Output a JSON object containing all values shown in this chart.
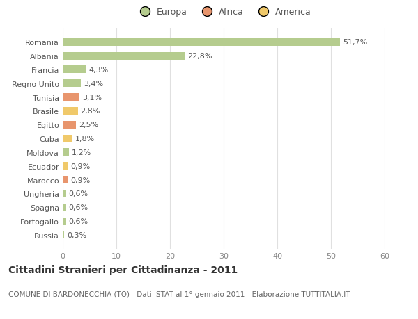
{
  "categories": [
    "Romania",
    "Albania",
    "Francia",
    "Regno Unito",
    "Tunisia",
    "Brasile",
    "Egitto",
    "Cuba",
    "Moldova",
    "Ecuador",
    "Marocco",
    "Ungheria",
    "Spagna",
    "Portogallo",
    "Russia"
  ],
  "values": [
    51.7,
    22.8,
    4.3,
    3.4,
    3.1,
    2.8,
    2.5,
    1.8,
    1.2,
    0.9,
    0.9,
    0.6,
    0.6,
    0.6,
    0.3
  ],
  "labels": [
    "51,7%",
    "22,8%",
    "4,3%",
    "3,4%",
    "3,1%",
    "2,8%",
    "2,5%",
    "1,8%",
    "1,2%",
    "0,9%",
    "0,9%",
    "0,6%",
    "0,6%",
    "0,6%",
    "0,3%"
  ],
  "continent": [
    "Europa",
    "Europa",
    "Europa",
    "Europa",
    "Africa",
    "America",
    "Africa",
    "America",
    "Europa",
    "America",
    "Africa",
    "Europa",
    "Europa",
    "Europa",
    "Europa"
  ],
  "colors": {
    "Europa": "#b5cc8e",
    "Africa": "#e8956d",
    "America": "#f0c96a"
  },
  "xlim": [
    0,
    60
  ],
  "xticks": [
    0,
    10,
    20,
    30,
    40,
    50,
    60
  ],
  "title": "Cittadini Stranieri per Cittadinanza - 2011",
  "subtitle": "COMUNE DI BARDONECCHIA (TO) - Dati ISTAT al 1° gennaio 2011 - Elaborazione TUTTITALIA.IT",
  "background_color": "#ffffff",
  "grid_color": "#e0e0e0",
  "bar_height": 0.55,
  "label_fontsize": 8,
  "tick_fontsize": 8,
  "title_fontsize": 10,
  "subtitle_fontsize": 7.5,
  "legend_items": [
    "Europa",
    "Africa",
    "America"
  ],
  "legend_colors": [
    "#b5cc8e",
    "#e8956d",
    "#f0c96a"
  ]
}
